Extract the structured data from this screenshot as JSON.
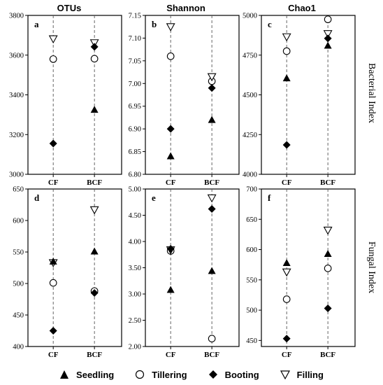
{
  "column_titles": [
    "OTUs",
    "Shannon",
    "Chao1"
  ],
  "row_labels": [
    "Bacterial Index",
    "Fungal Index"
  ],
  "legend": [
    {
      "label": "Seedling",
      "marker": "triangle-up-filled"
    },
    {
      "label": "Tillering",
      "marker": "circle-open"
    },
    {
      "label": "Booting",
      "marker": "diamond-filled"
    },
    {
      "label": "Filling",
      "marker": "triangle-down-open"
    }
  ],
  "chart_data": [
    {
      "panel": "a",
      "type": "scatter",
      "title": "OTUs",
      "categories": [
        "CF",
        "BCF"
      ],
      "ylim": [
        3000,
        3800
      ],
      "yticks": [
        "3000",
        "3200",
        "3400",
        "3600",
        "3800"
      ],
      "series": [
        {
          "name": "Seedling",
          "values": [
            null,
            3325
          ]
        },
        {
          "name": "Tillering",
          "values": [
            3580,
            3582
          ]
        },
        {
          "name": "Booting",
          "values": [
            3155,
            3642
          ]
        },
        {
          "name": "Filling",
          "values": [
            3682,
            3662
          ]
        }
      ]
    },
    {
      "panel": "b",
      "type": "scatter",
      "title": "Shannon",
      "categories": [
        "CF",
        "BCF"
      ],
      "ylim": [
        6.8,
        7.15
      ],
      "yticks": [
        "6.80",
        "6.85",
        "6.90",
        "6.95",
        "7.00",
        "7.05",
        "7.10",
        "7.15"
      ],
      "series": [
        {
          "name": "Seedling",
          "values": [
            6.84,
            6.92
          ]
        },
        {
          "name": "Tillering",
          "values": [
            7.06,
            7.005
          ]
        },
        {
          "name": "Booting",
          "values": [
            6.9,
            6.99
          ]
        },
        {
          "name": "Filling",
          "values": [
            7.125,
            7.015
          ]
        }
      ]
    },
    {
      "panel": "c",
      "type": "scatter",
      "title": "Chao1",
      "categories": [
        "CF",
        "BCF"
      ],
      "ylim": [
        4000,
        5000
      ],
      "yticks": [
        "4000",
        "4250",
        "4500",
        "4750",
        "5000"
      ],
      "series": [
        {
          "name": "Seedling",
          "values": [
            4605,
            4810
          ]
        },
        {
          "name": "Tillering",
          "values": [
            4775,
            4975
          ]
        },
        {
          "name": "Booting",
          "values": [
            4185,
            4855
          ]
        },
        {
          "name": "Filling",
          "values": [
            4865,
            4885
          ]
        }
      ]
    },
    {
      "panel": "d",
      "type": "scatter",
      "categories": [
        "CF",
        "BCF"
      ],
      "ylim": [
        400,
        650
      ],
      "yticks": [
        "400",
        "450",
        "500",
        "550",
        "600",
        "650"
      ],
      "series": [
        {
          "name": "Seedling",
          "values": [
            535,
            551
          ]
        },
        {
          "name": "Tillering",
          "values": [
            501,
            488
          ]
        },
        {
          "name": "Booting",
          "values": [
            425,
            485
          ]
        },
        {
          "name": "Filling",
          "values": [
            533,
            617
          ]
        }
      ]
    },
    {
      "panel": "e",
      "type": "scatter",
      "categories": [
        "CF",
        "BCF"
      ],
      "ylim": [
        2.0,
        5.0
      ],
      "yticks": [
        "2.00",
        "2.50",
        "3.00",
        "3.50",
        "4.00",
        "4.50",
        "5.00"
      ],
      "series": [
        {
          "name": "Seedling",
          "values": [
            3.08,
            3.44
          ]
        },
        {
          "name": "Tillering",
          "values": [
            3.82,
            2.15
          ]
        },
        {
          "name": "Booting",
          "values": [
            3.86,
            4.62
          ]
        },
        {
          "name": "Filling",
          "values": [
            3.84,
            4.83
          ]
        }
      ]
    },
    {
      "panel": "f",
      "type": "scatter",
      "categories": [
        "CF",
        "BCF"
      ],
      "ylim": [
        440,
        700
      ],
      "yticks": [
        "450",
        "500",
        "550",
        "600",
        "650",
        "700"
      ],
      "series": [
        {
          "name": "Seedling",
          "values": [
            578,
            593
          ]
        },
        {
          "name": "Tillering",
          "values": [
            518,
            569
          ]
        },
        {
          "name": "Booting",
          "values": [
            453,
            503
          ]
        },
        {
          "name": "Filling",
          "values": [
            563,
            632
          ]
        }
      ]
    }
  ]
}
